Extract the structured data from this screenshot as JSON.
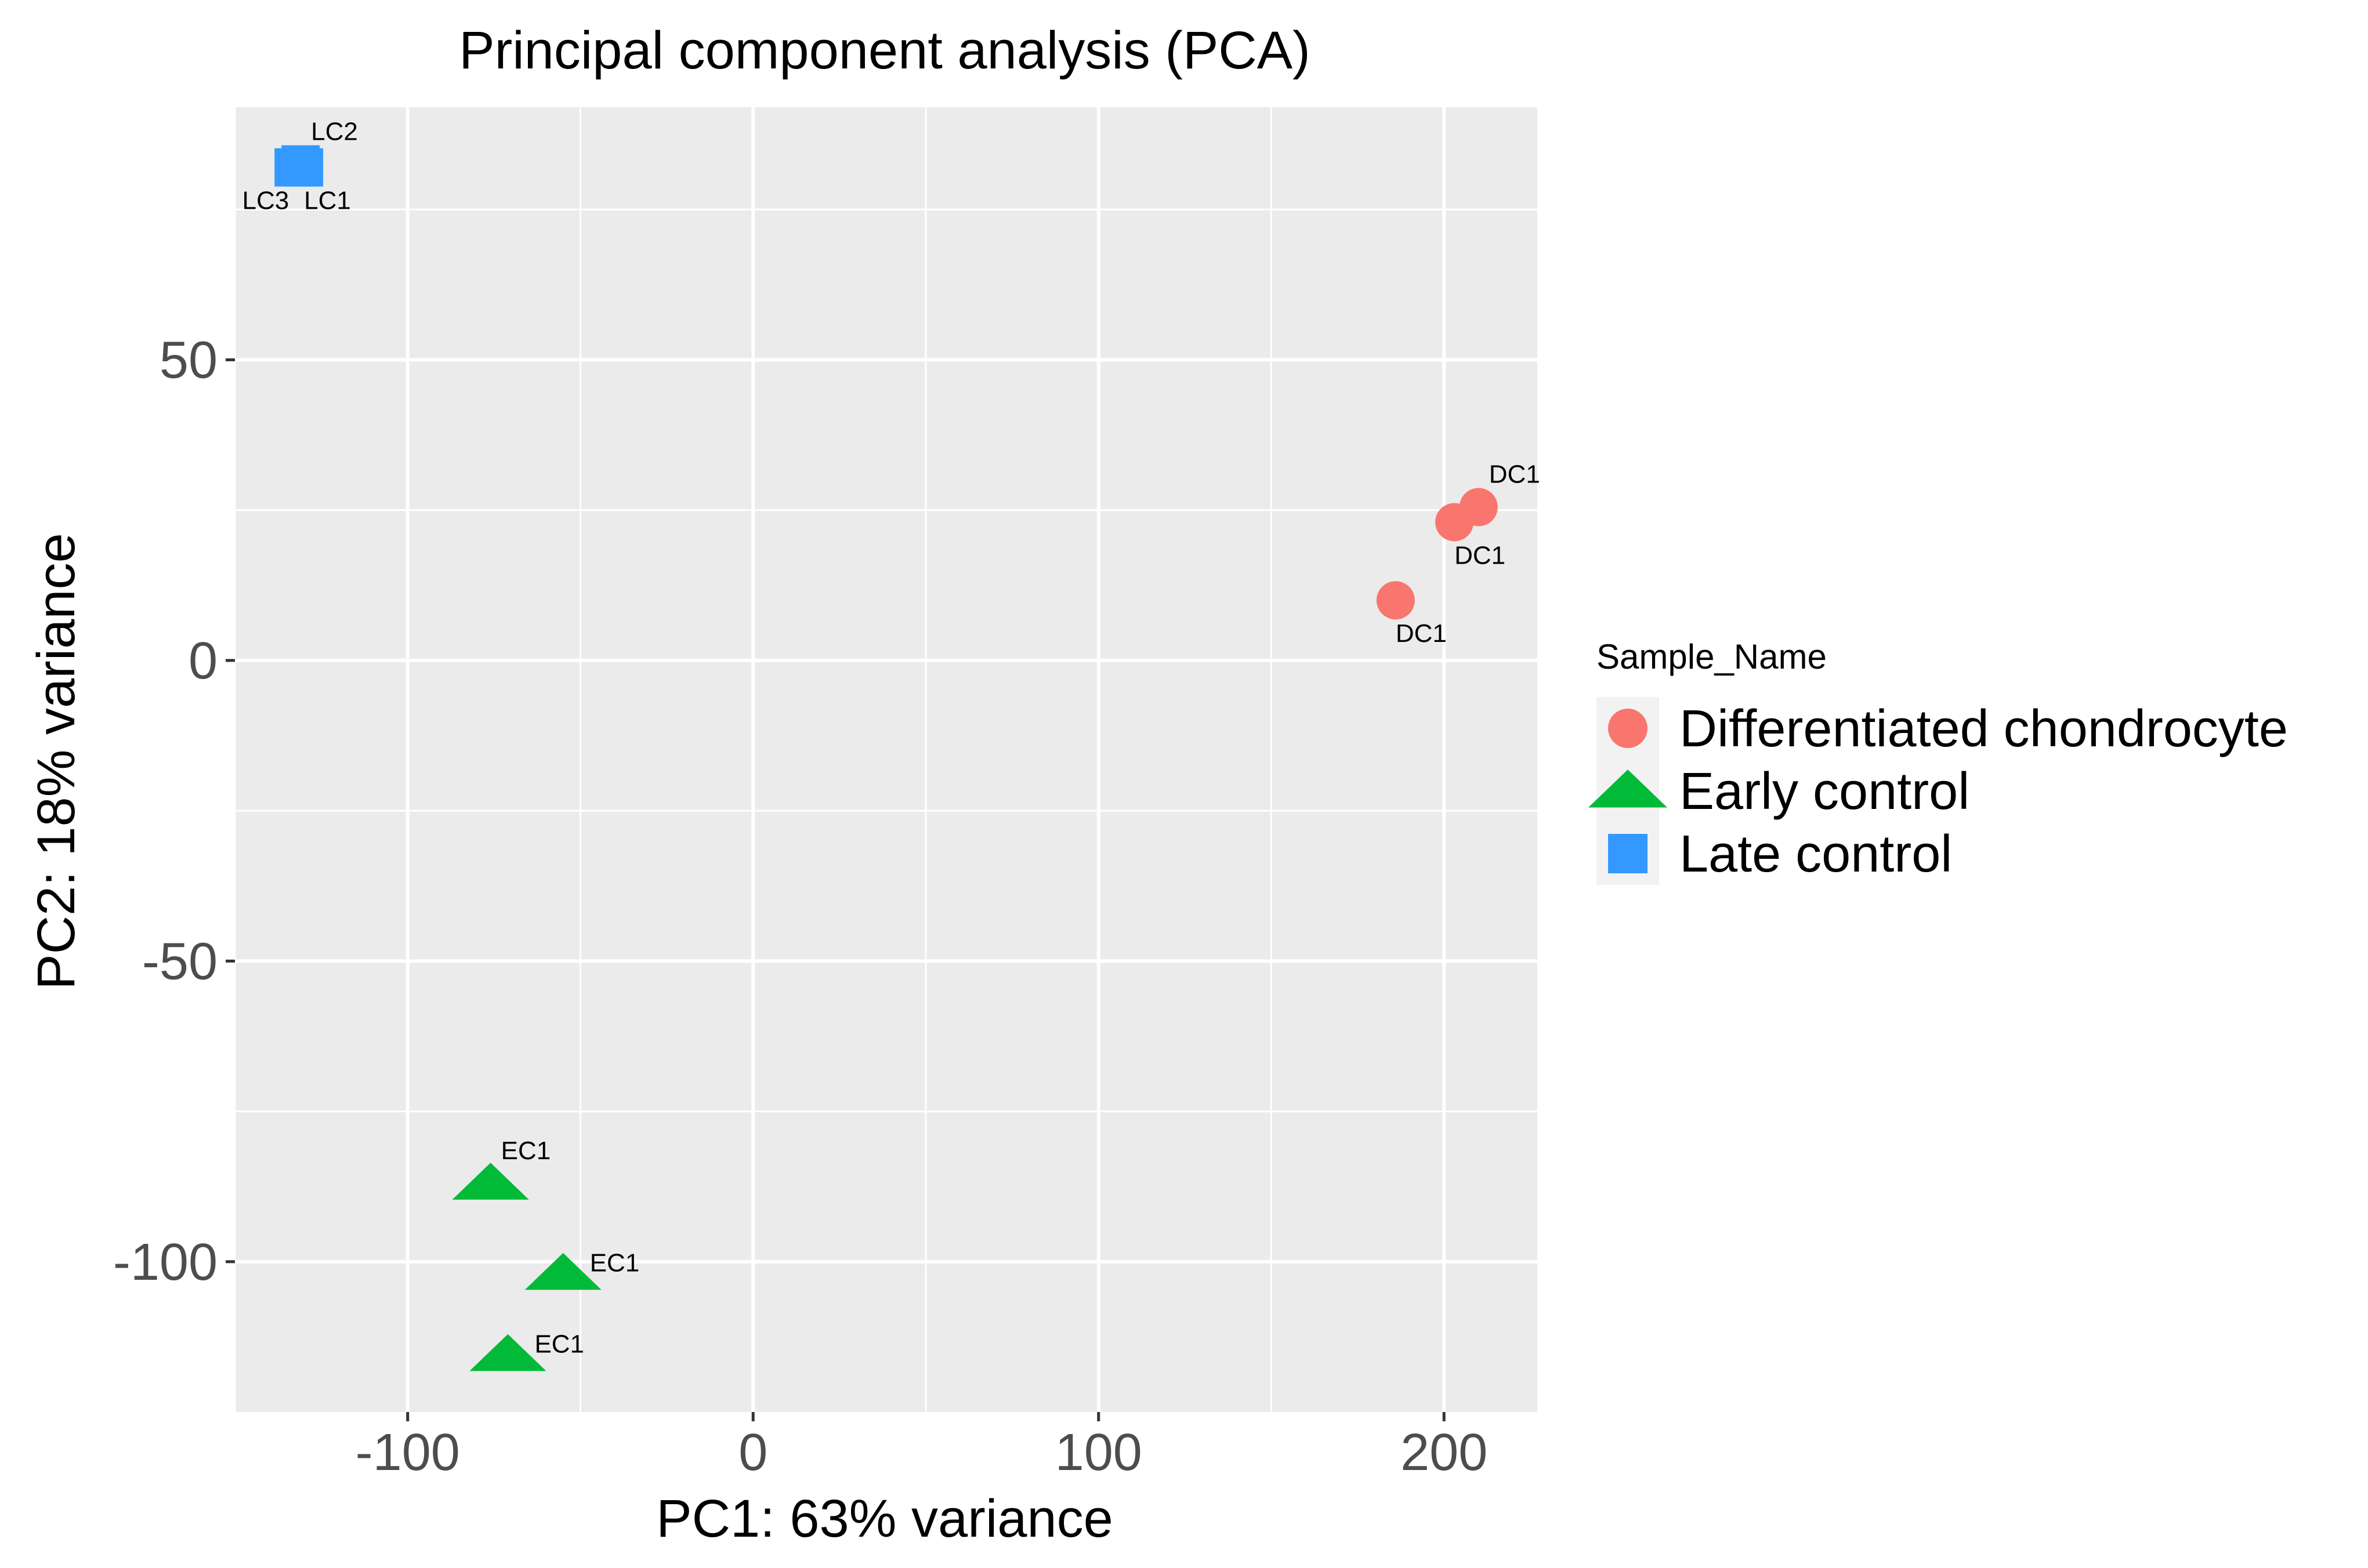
{
  "chart_data": {
    "type": "scatter",
    "title": "Principal component analysis (PCA)",
    "xlabel": "PC1: 63% variance",
    "ylabel": "PC2: 18% variance",
    "xlim": [
      -150,
      227
    ],
    "ylim": [
      -125,
      92
    ],
    "x_ticks": [
      -100,
      0,
      100,
      200
    ],
    "x_tick_labels": [
      "-100",
      "0",
      "100",
      "200"
    ],
    "y_ticks": [
      -100,
      -50,
      0,
      50
    ],
    "y_tick_labels": [
      "-100",
      "-50",
      "0",
      "50"
    ],
    "x_minor": [
      -150,
      -50,
      50,
      150
    ],
    "y_minor": [
      -75,
      -25,
      25,
      75
    ],
    "grid": true,
    "legend": {
      "title": "Sample_Name",
      "position": "right",
      "entries": [
        {
          "label": "Differentiated chondrocyte",
          "shape": "circle",
          "color": "#F8766D"
        },
        {
          "label": "Early control",
          "shape": "triangle",
          "color": "#00BA38"
        },
        {
          "label": "Late control",
          "shape": "square",
          "color": "#3399FF"
        }
      ]
    },
    "series": [
      {
        "name": "Differentiated chondrocyte",
        "shape": "circle",
        "color": "#F8766D",
        "points": [
          {
            "x": 210,
            "y": 25.5,
            "label": "DC1",
            "label_pos": "above-right"
          },
          {
            "x": 203,
            "y": 23,
            "label": "DC1",
            "label_pos": "below-right"
          },
          {
            "x": 186,
            "y": 10,
            "label": "DC1",
            "label_pos": "below-right"
          }
        ]
      },
      {
        "name": "Early control",
        "shape": "triangle",
        "color": "#00BA38",
        "points": [
          {
            "x": -76,
            "y": -87,
            "label": "EC1",
            "label_pos": "above-right"
          },
          {
            "x": -55,
            "y": -102,
            "label": "EC1",
            "label_pos": "right"
          },
          {
            "x": -71,
            "y": -115.5,
            "label": "EC1",
            "label_pos": "right"
          }
        ]
      },
      {
        "name": "Late control",
        "shape": "square",
        "color": "#3399FF",
        "points": [
          {
            "x": -131,
            "y": 82.5,
            "label": "LC2",
            "label_pos": "above-right"
          },
          {
            "x": -130,
            "y": 82,
            "label": "LC1",
            "label_pos": "below-right"
          },
          {
            "x": -133,
            "y": 82,
            "label": "LC3",
            "label_pos": "below-left"
          }
        ]
      }
    ]
  }
}
